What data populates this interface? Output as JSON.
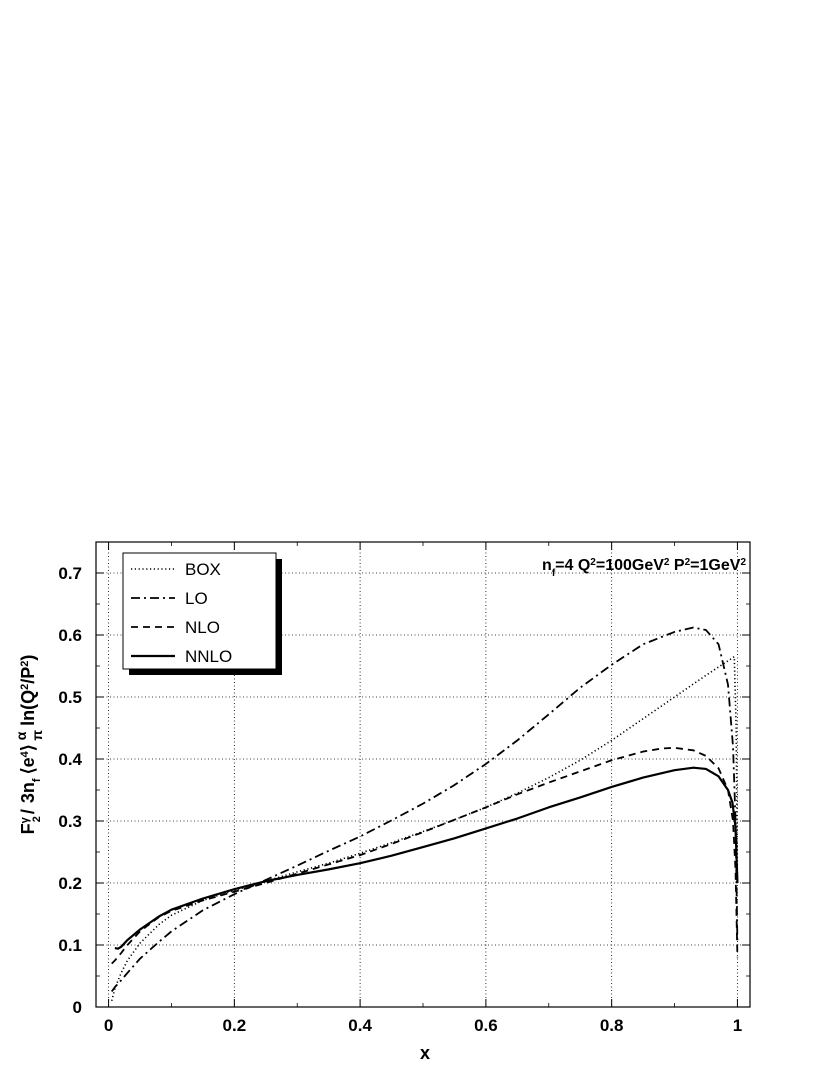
{
  "chart_data": {
    "type": "line",
    "xlabel": "x",
    "ylabel": {
      "F": "F",
      "F_sup": "γ",
      "F_sub": "2",
      "slash": "/",
      "three_n": "3n",
      "n_sub": "f",
      "mean_open": "⟨e",
      "e_sup": "4",
      "mean_close": "⟩",
      "frac_num": "α",
      "frac_den": "π",
      "ln": "ln(Q",
      "q_sup": "2",
      "mid": "/P",
      "p_sup": "2",
      "close": ")"
    },
    "annotation": {
      "n": "n",
      "n_sub": "f",
      "eq4": "=4 Q",
      "q_sup": "2",
      "q_val": "=100GeV",
      "q_unit_sup": "2",
      "p": " P",
      "p_sup": "2",
      "p_val": "=1GeV",
      "p_unit_sup": "2"
    },
    "xlim": [
      -0.02,
      1.02
    ],
    "ylim": [
      0,
      0.75
    ],
    "xticks": [
      "0",
      "0.2",
      "0.4",
      "0.6",
      "0.8",
      "1"
    ],
    "xtick_values": [
      0,
      0.2,
      0.4,
      0.6,
      0.8,
      1
    ],
    "yticks": [
      "0",
      "0.1",
      "0.2",
      "0.3",
      "0.4",
      "0.5",
      "0.6",
      "0.7"
    ],
    "ytick_values": [
      0,
      0.1,
      0.2,
      0.3,
      0.4,
      0.5,
      0.6,
      0.7
    ],
    "grid": true,
    "legend_position": "top-left",
    "series": [
      {
        "name": "BOX",
        "style": "dotted",
        "points": [
          [
            0.005,
            0.01
          ],
          [
            0.01,
            0.03
          ],
          [
            0.02,
            0.055
          ],
          [
            0.03,
            0.075
          ],
          [
            0.05,
            0.103
          ],
          [
            0.08,
            0.133
          ],
          [
            0.1,
            0.148
          ],
          [
            0.15,
            0.172
          ],
          [
            0.2,
            0.188
          ],
          [
            0.25,
            0.203
          ],
          [
            0.3,
            0.218
          ],
          [
            0.35,
            0.232
          ],
          [
            0.4,
            0.248
          ],
          [
            0.45,
            0.265
          ],
          [
            0.5,
            0.283
          ],
          [
            0.55,
            0.302
          ],
          [
            0.6,
            0.322
          ],
          [
            0.65,
            0.345
          ],
          [
            0.7,
            0.37
          ],
          [
            0.75,
            0.398
          ],
          [
            0.8,
            0.43
          ],
          [
            0.85,
            0.465
          ],
          [
            0.9,
            0.5
          ],
          [
            0.95,
            0.535
          ],
          [
            0.98,
            0.555
          ],
          [
            0.995,
            0.565
          ],
          [
            0.998,
            0.45
          ],
          [
            1.0,
            0.2
          ]
        ]
      },
      {
        "name": "LO",
        "style": "dashdot",
        "points": [
          [
            0.005,
            0.025
          ],
          [
            0.01,
            0.032
          ],
          [
            0.02,
            0.043
          ],
          [
            0.03,
            0.055
          ],
          [
            0.05,
            0.078
          ],
          [
            0.08,
            0.105
          ],
          [
            0.1,
            0.122
          ],
          [
            0.15,
            0.156
          ],
          [
            0.2,
            0.182
          ],
          [
            0.25,
            0.205
          ],
          [
            0.3,
            0.228
          ],
          [
            0.35,
            0.252
          ],
          [
            0.4,
            0.275
          ],
          [
            0.45,
            0.301
          ],
          [
            0.5,
            0.328
          ],
          [
            0.55,
            0.358
          ],
          [
            0.6,
            0.392
          ],
          [
            0.65,
            0.43
          ],
          [
            0.7,
            0.472
          ],
          [
            0.75,
            0.515
          ],
          [
            0.8,
            0.552
          ],
          [
            0.85,
            0.585
          ],
          [
            0.9,
            0.605
          ],
          [
            0.93,
            0.612
          ],
          [
            0.95,
            0.608
          ],
          [
            0.97,
            0.585
          ],
          [
            0.985,
            0.52
          ],
          [
            0.993,
            0.42
          ],
          [
            0.997,
            0.3
          ],
          [
            1.0,
            0.1
          ]
        ]
      },
      {
        "name": "NLO",
        "style": "dashed",
        "points": [
          [
            0.005,
            0.07
          ],
          [
            0.01,
            0.075
          ],
          [
            0.02,
            0.087
          ],
          [
            0.03,
            0.1
          ],
          [
            0.05,
            0.122
          ],
          [
            0.08,
            0.145
          ],
          [
            0.1,
            0.155
          ],
          [
            0.15,
            0.172
          ],
          [
            0.2,
            0.186
          ],
          [
            0.25,
            0.2
          ],
          [
            0.3,
            0.215
          ],
          [
            0.35,
            0.23
          ],
          [
            0.4,
            0.245
          ],
          [
            0.45,
            0.263
          ],
          [
            0.5,
            0.282
          ],
          [
            0.55,
            0.302
          ],
          [
            0.6,
            0.322
          ],
          [
            0.65,
            0.343
          ],
          [
            0.7,
            0.362
          ],
          [
            0.75,
            0.38
          ],
          [
            0.8,
            0.398
          ],
          [
            0.85,
            0.412
          ],
          [
            0.88,
            0.417
          ],
          [
            0.9,
            0.418
          ],
          [
            0.93,
            0.414
          ],
          [
            0.95,
            0.405
          ],
          [
            0.97,
            0.385
          ],
          [
            0.985,
            0.35
          ],
          [
            0.993,
            0.3
          ],
          [
            0.997,
            0.22
          ],
          [
            1.0,
            0.08
          ]
        ]
      },
      {
        "name": "NNLO",
        "style": "solid",
        "points": [
          [
            0.01,
            0.095
          ],
          [
            0.015,
            0.094
          ],
          [
            0.02,
            0.097
          ],
          [
            0.03,
            0.108
          ],
          [
            0.05,
            0.125
          ],
          [
            0.08,
            0.146
          ],
          [
            0.1,
            0.157
          ],
          [
            0.15,
            0.175
          ],
          [
            0.2,
            0.19
          ],
          [
            0.25,
            0.203
          ],
          [
            0.3,
            0.213
          ],
          [
            0.35,
            0.222
          ],
          [
            0.4,
            0.232
          ],
          [
            0.45,
            0.244
          ],
          [
            0.5,
            0.258
          ],
          [
            0.55,
            0.272
          ],
          [
            0.6,
            0.288
          ],
          [
            0.65,
            0.304
          ],
          [
            0.7,
            0.322
          ],
          [
            0.75,
            0.338
          ],
          [
            0.8,
            0.355
          ],
          [
            0.85,
            0.37
          ],
          [
            0.9,
            0.382
          ],
          [
            0.93,
            0.386
          ],
          [
            0.95,
            0.384
          ],
          [
            0.97,
            0.372
          ],
          [
            0.985,
            0.35
          ],
          [
            0.992,
            0.33
          ],
          [
            0.997,
            0.29
          ],
          [
            1.0,
            0.2
          ]
        ]
      }
    ]
  }
}
